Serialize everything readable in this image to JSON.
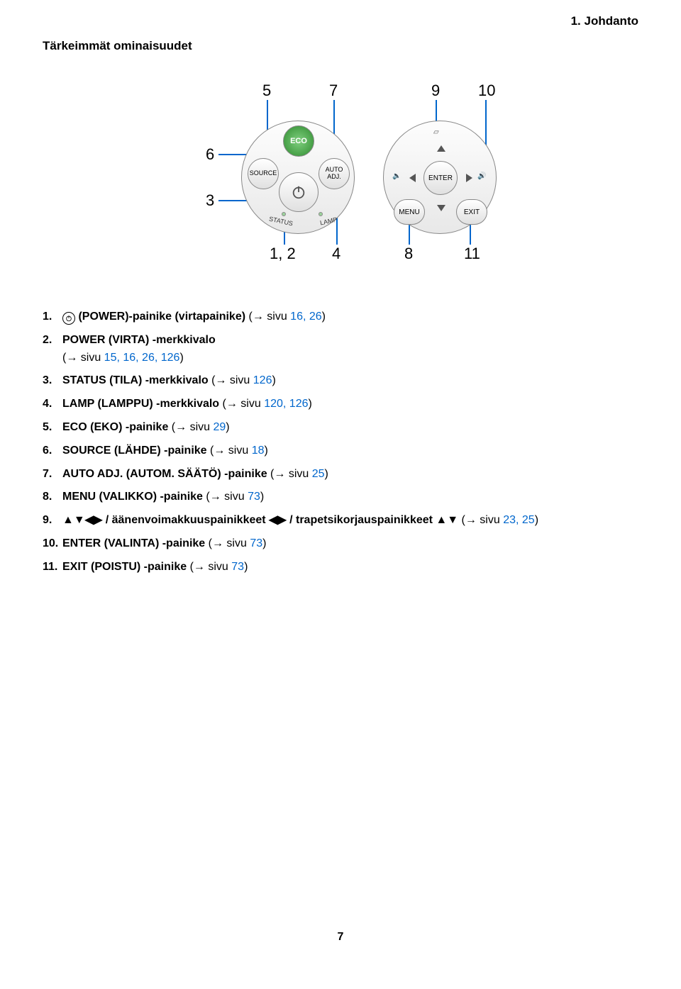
{
  "chapter": {
    "title": "1. Johdanto"
  },
  "section": {
    "title": "Tärkeimmät ominaisuudet"
  },
  "pageNumber": "7",
  "linkColor": "#0066cc",
  "diagram": {
    "callouts": {
      "c5": "5",
      "c7": "7",
      "c9": "9",
      "c10": "10",
      "c6": "6",
      "c3": "3",
      "c12": "1, 2",
      "c4": "4",
      "c8": "8",
      "c11": "11"
    },
    "leftCluster": {
      "eco": "ECO",
      "source": "SOURCE",
      "auto": "AUTO\nADJ.",
      "status": "STATUS",
      "lamp": "LAMP"
    },
    "rightCluster": {
      "enter": "ENTER",
      "menu": "MENU",
      "exit": "EXIT"
    }
  },
  "items": [
    {
      "hasPowerIcon": true,
      "boldPrefix": "(POWER)-painike (virtapainike)",
      "afterBold": " (→ sivu ",
      "pages": "16, 26",
      "tail": ")"
    },
    {
      "boldPrefix": "POWER (VIRTA) -merkkivalo",
      "break": true,
      "afterBold": "(→ sivu ",
      "pages": "15, 16, 26, 126",
      "tail": ")"
    },
    {
      "boldPrefix": "STATUS (TILA) -merkkivalo",
      "afterBold": " (→ sivu ",
      "pages": "126",
      "tail": ")"
    },
    {
      "boldPrefix": "LAMP (LAMPPU) -merkkivalo",
      "afterBold": " (→ sivu ",
      "pages": "120, 126",
      "tail": ")"
    },
    {
      "boldPrefix": "ECO (EKO) -painike",
      "afterBold": " (→ sivu ",
      "pages": "29",
      "tail": ")"
    },
    {
      "boldPrefix": "SOURCE (LÄHDE) -painike",
      "afterBold": " (→ sivu ",
      "pages": "18",
      "tail": ")"
    },
    {
      "boldPrefix": "AUTO ADJ. (AUTOM. SÄÄTÖ) -painike",
      "afterBold": " (→ sivu ",
      "pages": "25",
      "tail": ")"
    },
    {
      "boldPrefix": "MENU (VALIKKO) -painike",
      "afterBold": " (→ sivu ",
      "pages": "73",
      "tail": ")"
    },
    {
      "boldPrefix": "▲▼◀▶ / äänenvoimakkuuspainikkeet ◀▶ / trapetsikorjauspainikkeet ▲▼",
      "afterBold": " (→ sivu ",
      "pages": "23, 25",
      "tail": ")"
    },
    {
      "boldPrefix": "ENTER (VALINTA) -painike",
      "afterBold": " (→ sivu ",
      "pages": "73",
      "tail": ")"
    },
    {
      "boldPrefix": "EXIT (POISTU) -painike",
      "afterBold": " (→ sivu ",
      "pages": "73",
      "tail": ")"
    }
  ]
}
